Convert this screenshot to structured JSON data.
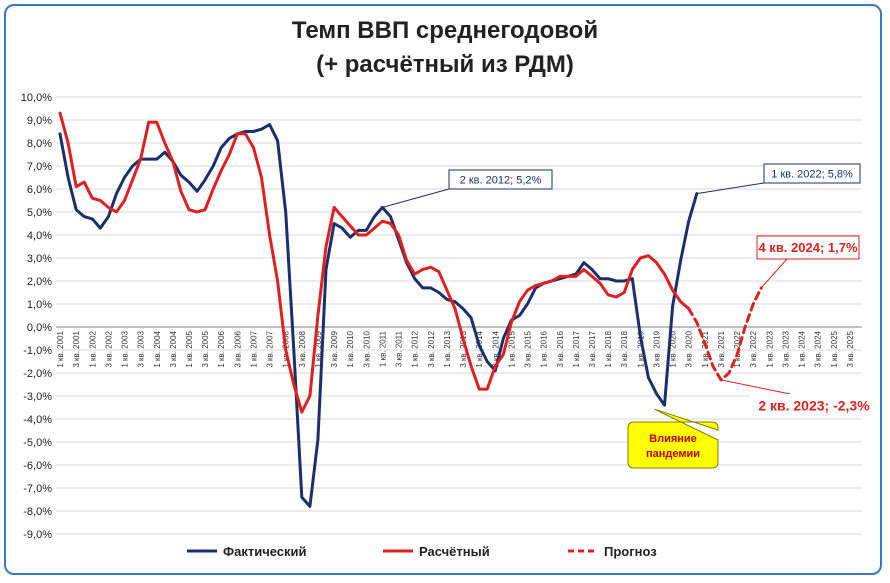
{
  "chart_data": {
    "type": "line",
    "title_line1": "Темп ВВП среднегодовой",
    "title_line2": "(+ расчётный из РДМ)",
    "xlabel": "",
    "ylabel": "",
    "ylim": [
      -9,
      10
    ],
    "ytick_step": 1,
    "y_tick_labels": [
      "10,0%",
      "9,0%",
      "8,0%",
      "7,0%",
      "6,0%",
      "5,0%",
      "4,0%",
      "3,0%",
      "2,0%",
      "1,0%",
      "0,0%",
      "-1,0%",
      "-2,0%",
      "-3,0%",
      "-4,0%",
      "-5,0%",
      "-6,0%",
      "-7,0%",
      "-8,0%",
      "-9,0%"
    ],
    "x_tick_labels": [
      "1 кв. 2001",
      "3 кв. 2001",
      "1 кв. 2002",
      "3 кв. 2002",
      "1 кв. 2003",
      "3 кв. 2003",
      "1 кв. 2004",
      "3 кв. 2004",
      "1 кв. 2005",
      "3 кв. 2005",
      "1 кв. 2006",
      "3 кв. 2006",
      "1 кв. 2007",
      "3 кв. 2007",
      "1 кв. 2008",
      "3 кв. 2008",
      "1 кв. 2009",
      "3 кв. 2009",
      "1 кв. 2010",
      "3 кв. 2010",
      "1 кв. 2011",
      "3 кв. 2011",
      "1 кв. 2012",
      "3 кв. 2012",
      "1 кв. 2013",
      "3 кв. 2013",
      "1 кв. 2014",
      "3 кв. 2014",
      "1 кв. 2015",
      "3 кв. 2015",
      "1 кв. 2016",
      "3 кв. 2016",
      "1 кв. 2017",
      "3 кв. 2017",
      "1 кв. 2018",
      "3 кв. 2018",
      "1 кв. 2019",
      "3 кв. 2019",
      "1 кв. 2020",
      "3 кв. 2020",
      "1 кв. 2021",
      "3 кв. 2021",
      "1 кв. 2022",
      "3 кв. 2022",
      "1 кв. 2023",
      "3 кв. 2023",
      "1 кв. 2024",
      "3 кв. 2024",
      "1 кв. 2025",
      "3 кв. 2025"
    ],
    "grid": true,
    "legend_position": "bottom",
    "series": [
      {
        "name": "Фактический",
        "color": "#1a2f6e",
        "style": "solid",
        "start_index": 0,
        "values": [
          8.4,
          6.5,
          5.1,
          4.8,
          4.7,
          4.3,
          4.8,
          5.8,
          6.5,
          7.0,
          7.3,
          7.3,
          7.3,
          7.6,
          7.2,
          6.6,
          6.3,
          5.9,
          6.4,
          7.0,
          7.8,
          8.2,
          8.4,
          8.5,
          8.5,
          8.6,
          8.8,
          8.1,
          5.0,
          -1.0,
          -7.4,
          -7.8,
          -4.9,
          2.5,
          4.5,
          4.3,
          3.9,
          4.2,
          4.2,
          4.8,
          5.2,
          4.8,
          3.8,
          2.8,
          2.1,
          1.7,
          1.7,
          1.5,
          1.2,
          1.1,
          0.8,
          0.4,
          -0.8,
          -1.5,
          -1.9,
          -0.5,
          0.3,
          0.5,
          1.0,
          1.7,
          1.9,
          2.0,
          2.1,
          2.2,
          2.3,
          2.8,
          2.5,
          2.1,
          2.1,
          2.0,
          2.0,
          2.1,
          -0.4,
          -2.2,
          -2.9,
          -3.4,
          0.9,
          2.9,
          4.6,
          5.8
        ]
      },
      {
        "name": "Расчётный",
        "color": "#e02020",
        "style": "solid",
        "start_index": 0,
        "values": [
          9.3,
          8.0,
          6.1,
          6.3,
          5.6,
          5.5,
          5.2,
          5.0,
          5.5,
          6.4,
          7.3,
          8.9,
          8.9,
          8.0,
          7.2,
          5.9,
          5.1,
          5.0,
          5.1,
          6.0,
          6.8,
          7.5,
          8.4,
          8.4,
          7.8,
          6.5,
          4.0,
          2.0,
          -1.0,
          -2.5,
          -3.7,
          -3.0,
          0.5,
          3.5,
          5.2,
          4.8,
          4.4,
          4.0,
          4.0,
          4.3,
          4.6,
          4.5,
          4.0,
          2.9,
          2.3,
          2.5,
          2.6,
          2.4,
          1.6,
          0.8,
          -0.5,
          -1.7,
          -2.7,
          -2.7,
          -1.7,
          -1.2,
          0.2,
          1.1,
          1.6,
          1.8,
          1.9,
          2.0,
          2.2,
          2.2,
          2.2,
          2.5,
          2.2,
          1.9,
          1.4,
          1.3,
          1.5,
          2.5,
          3.0,
          3.1,
          2.8,
          2.3,
          1.6,
          1.1,
          0.8
        ]
      },
      {
        "name": "Прогноз",
        "color": "#e02020",
        "style": "dashed",
        "start_index": 78,
        "values": [
          0.8,
          0.2,
          -0.7,
          -1.7,
          -2.3,
          -2.0,
          -1.2,
          0.0,
          1.0,
          1.7
        ]
      }
    ],
    "annotations": [
      {
        "text": "2 кв. 2012; 5,2%",
        "color": "#1a2f6e",
        "index": 40,
        "value": 5.2
      },
      {
        "text": "1 кв. 2022; 5,8%",
        "color": "#1a2f6e",
        "index": 79,
        "value": 5.8
      },
      {
        "text": "4 кв. 2024; 1,7%",
        "color": "#e02020",
        "index": 87,
        "value": 1.7
      },
      {
        "text": "2 кв. 2023; -2,3%",
        "color": "#e02020",
        "index": 82,
        "value": -2.3
      },
      {
        "text_line1": "Влияние",
        "text_line2": "пандемии",
        "color": "#c00000",
        "fill": "#ffff00",
        "index": 74,
        "value": -3.4
      }
    ]
  }
}
